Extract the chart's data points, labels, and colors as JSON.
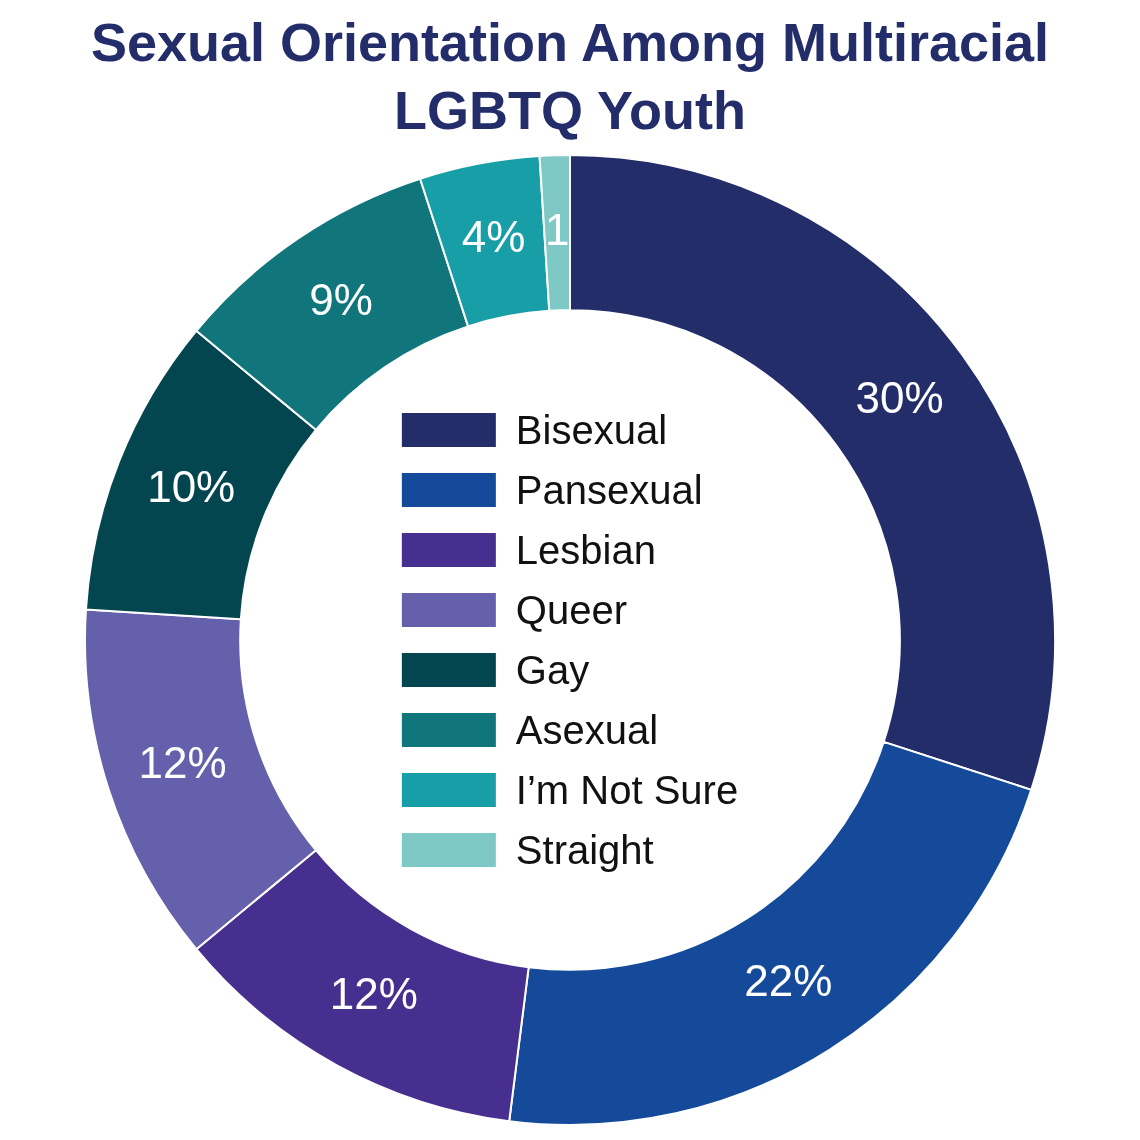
{
  "chart_data": {
    "type": "donut",
    "title": "Sexual Orientation Among Multiracial LGBTQ Youth",
    "categories": [
      "Bisexual",
      "Pansexual",
      "Lesbian",
      "Queer",
      "Gay",
      "Asexual",
      "I’m Not Sure",
      "Straight"
    ],
    "values": [
      30,
      22,
      12,
      12,
      10,
      9,
      4,
      1
    ],
    "colors": [
      "#232d69",
      "#154a9a",
      "#462f8f",
      "#6460ab",
      "#03464f",
      "#10767b",
      "#189ea6",
      "#7ec8c5"
    ],
    "value_labels": [
      "30%",
      "22%",
      "12%",
      "12%",
      "10%",
      "9%",
      "4%",
      "1"
    ],
    "legend": "center"
  }
}
